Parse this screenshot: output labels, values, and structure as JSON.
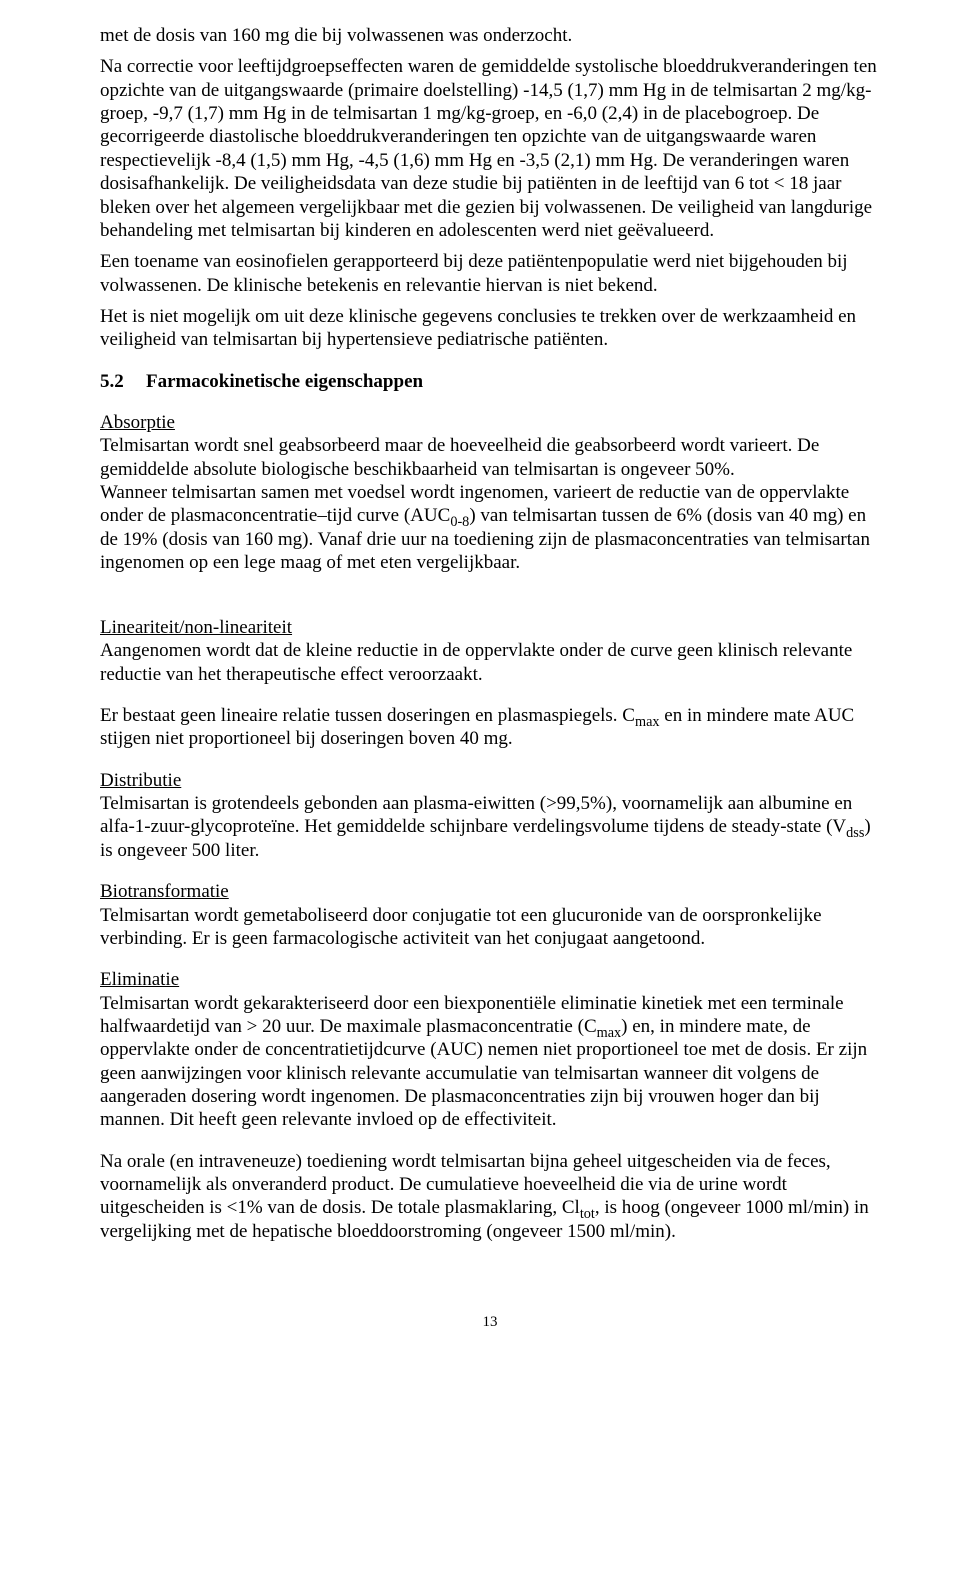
{
  "p1": "met de dosis van 160 mg die bij volwassenen was onderzocht.",
  "p2": "Na correctie voor leeftijdgroepseffecten waren de gemiddelde systolische bloeddrukveranderingen ten opzichte van de uitgangswaarde (primaire doelstelling) -14,5 (1,7) mm Hg in de telmisartan 2 mg/kg-groep, -9,7 (1,7) mm Hg in de telmisartan 1 mg/kg-groep, en -6,0 (2,4) in de placebogroep. De gecorrigeerde diastolische bloeddrukveranderingen ten opzichte van de uitgangswaarde waren respectievelijk -8,4 (1,5) mm Hg, -4,5 (1,6) mm Hg en -3,5 (2,1) mm Hg. De veranderingen waren dosisafhankelijk. De veiligheidsdata van deze studie bij patiënten in de leeftijd van 6 tot < 18 jaar bleken over het algemeen vergelijkbaar met die gezien bij volwassenen. De veiligheid van langdurige behandeling met telmisartan bij kinderen en adolescenten werd niet geëvalueerd.",
  "p3": "Een toename van eosinofielen gerapporteerd bij deze patiëntenpopulatie werd niet bijgehouden bij volwassenen. De klinische betekenis en relevantie hiervan is niet bekend.",
  "p4": "Het is niet mogelijk om uit deze klinische gegevens conclusies te trekken over de werkzaamheid en veiligheid van telmisartan bij hypertensieve pediatrische patiënten.",
  "section_num": "5.2",
  "section_title": "Farmacokinetische eigenschappen",
  "absorptie_head": "Absorptie",
  "absorptie_p1": "Telmisartan wordt snel geabsorbeerd maar de hoeveelheid die geabsorbeerd wordt varieert. De gemiddelde absolute biologische beschikbaarheid van telmisartan is ongeveer 50%.",
  "absorptie_p2a": "Wanneer telmisartan samen met voedsel wordt ingenomen, varieert de reductie van de oppervlakte onder de plasmaconcentratie–tijd curve (AUC",
  "absorptie_p2sub": "0-8",
  "absorptie_p2b": ") van telmisartan tussen de 6% (dosis van 40 mg) en de 19% (dosis van 160 mg). Vanaf drie uur na toediening zijn de plasmaconcentraties van telmisartan ingenomen op een lege maag of met eten vergelijkbaar.",
  "lin_head": "Lineariteit/non-lineariteit",
  "lin_p1": "Aangenomen wordt dat de kleine reductie in de oppervlakte onder de curve geen klinisch relevante reductie van het therapeutische effect veroorzaakt.",
  "lin_p2a": "Er bestaat geen lineaire relatie tussen doseringen en plasmaspiegels. C",
  "lin_p2sub": "max",
  "lin_p2b": " en in mindere mate AUC stijgen niet proportioneel bij doseringen boven 40 mg.",
  "dist_head": "Distributie",
  "dist_p1a": "Telmisartan is grotendeels gebonden aan plasma-eiwitten (>99,5%), voornamelijk aan albumine en alfa-1-zuur-glycoproteïne. Het gemiddelde schijnbare verdelingsvolume tijdens de steady-state (V",
  "dist_p1sub": "dss",
  "dist_p1b": ") is ongeveer 500 liter.",
  "bio_head": "Biotransformatie",
  "bio_p1": "Telmisartan wordt gemetaboliseerd door conjugatie tot een glucuronide van de oorspronkelijke verbinding. Er is geen farmacologische activiteit van het conjugaat aangetoond.",
  "elim_head": "Eliminatie",
  "elim_p1a": "Telmisartan wordt gekarakteriseerd door een biexponentiële eliminatie kinetiek met een terminale halfwaardetijd van > 20 uur. De maximale plasmaconcentratie (C",
  "elim_p1sub": "max",
  "elim_p1b": ") en, in mindere mate, de oppervlakte onder de concentratietijdcurve (AUC) nemen niet proportioneel toe met de dosis. Er zijn geen aanwijzingen voor klinisch relevante accumulatie van telmisartan wanneer dit volgens de aangeraden dosering wordt ingenomen. De plasmaconcentraties zijn bij vrouwen hoger dan bij mannen. Dit heeft geen relevante invloed op de effectiviteit.",
  "elim_p2a": "Na orale (en intraveneuze) toediening wordt telmisartan bijna geheel uitgescheiden via de feces, voornamelijk als onveranderd product. De cumulatieve hoeveelheid die via de urine wordt uitgescheiden is <1% van de dosis. De totale plasmaklaring, Cl",
  "elim_p2sub": "tot",
  "elim_p2b": ", is hoog (ongeveer 1000 ml/min) in vergelijking met de hepatische bloeddoorstroming (ongeveer 1500 ml/min).",
  "page_number": "13"
}
